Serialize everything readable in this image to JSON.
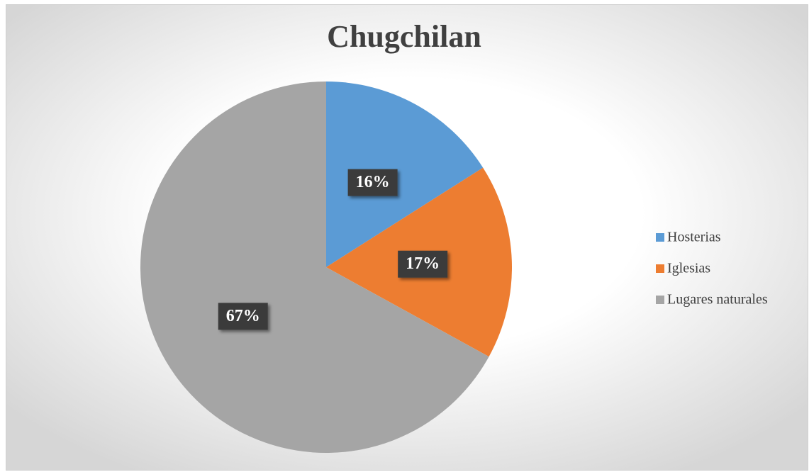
{
  "chart_data": {
    "type": "pie",
    "title": "Chugchilan",
    "categories": [
      "Hosterias",
      "Iglesias",
      "Lugares naturales"
    ],
    "values": [
      16,
      17,
      67
    ],
    "value_labels": [
      "16%",
      "17%",
      "67%"
    ],
    "colors": [
      "#5b9bd5",
      "#ed7d31",
      "#a5a5a5"
    ],
    "legend": "right"
  }
}
